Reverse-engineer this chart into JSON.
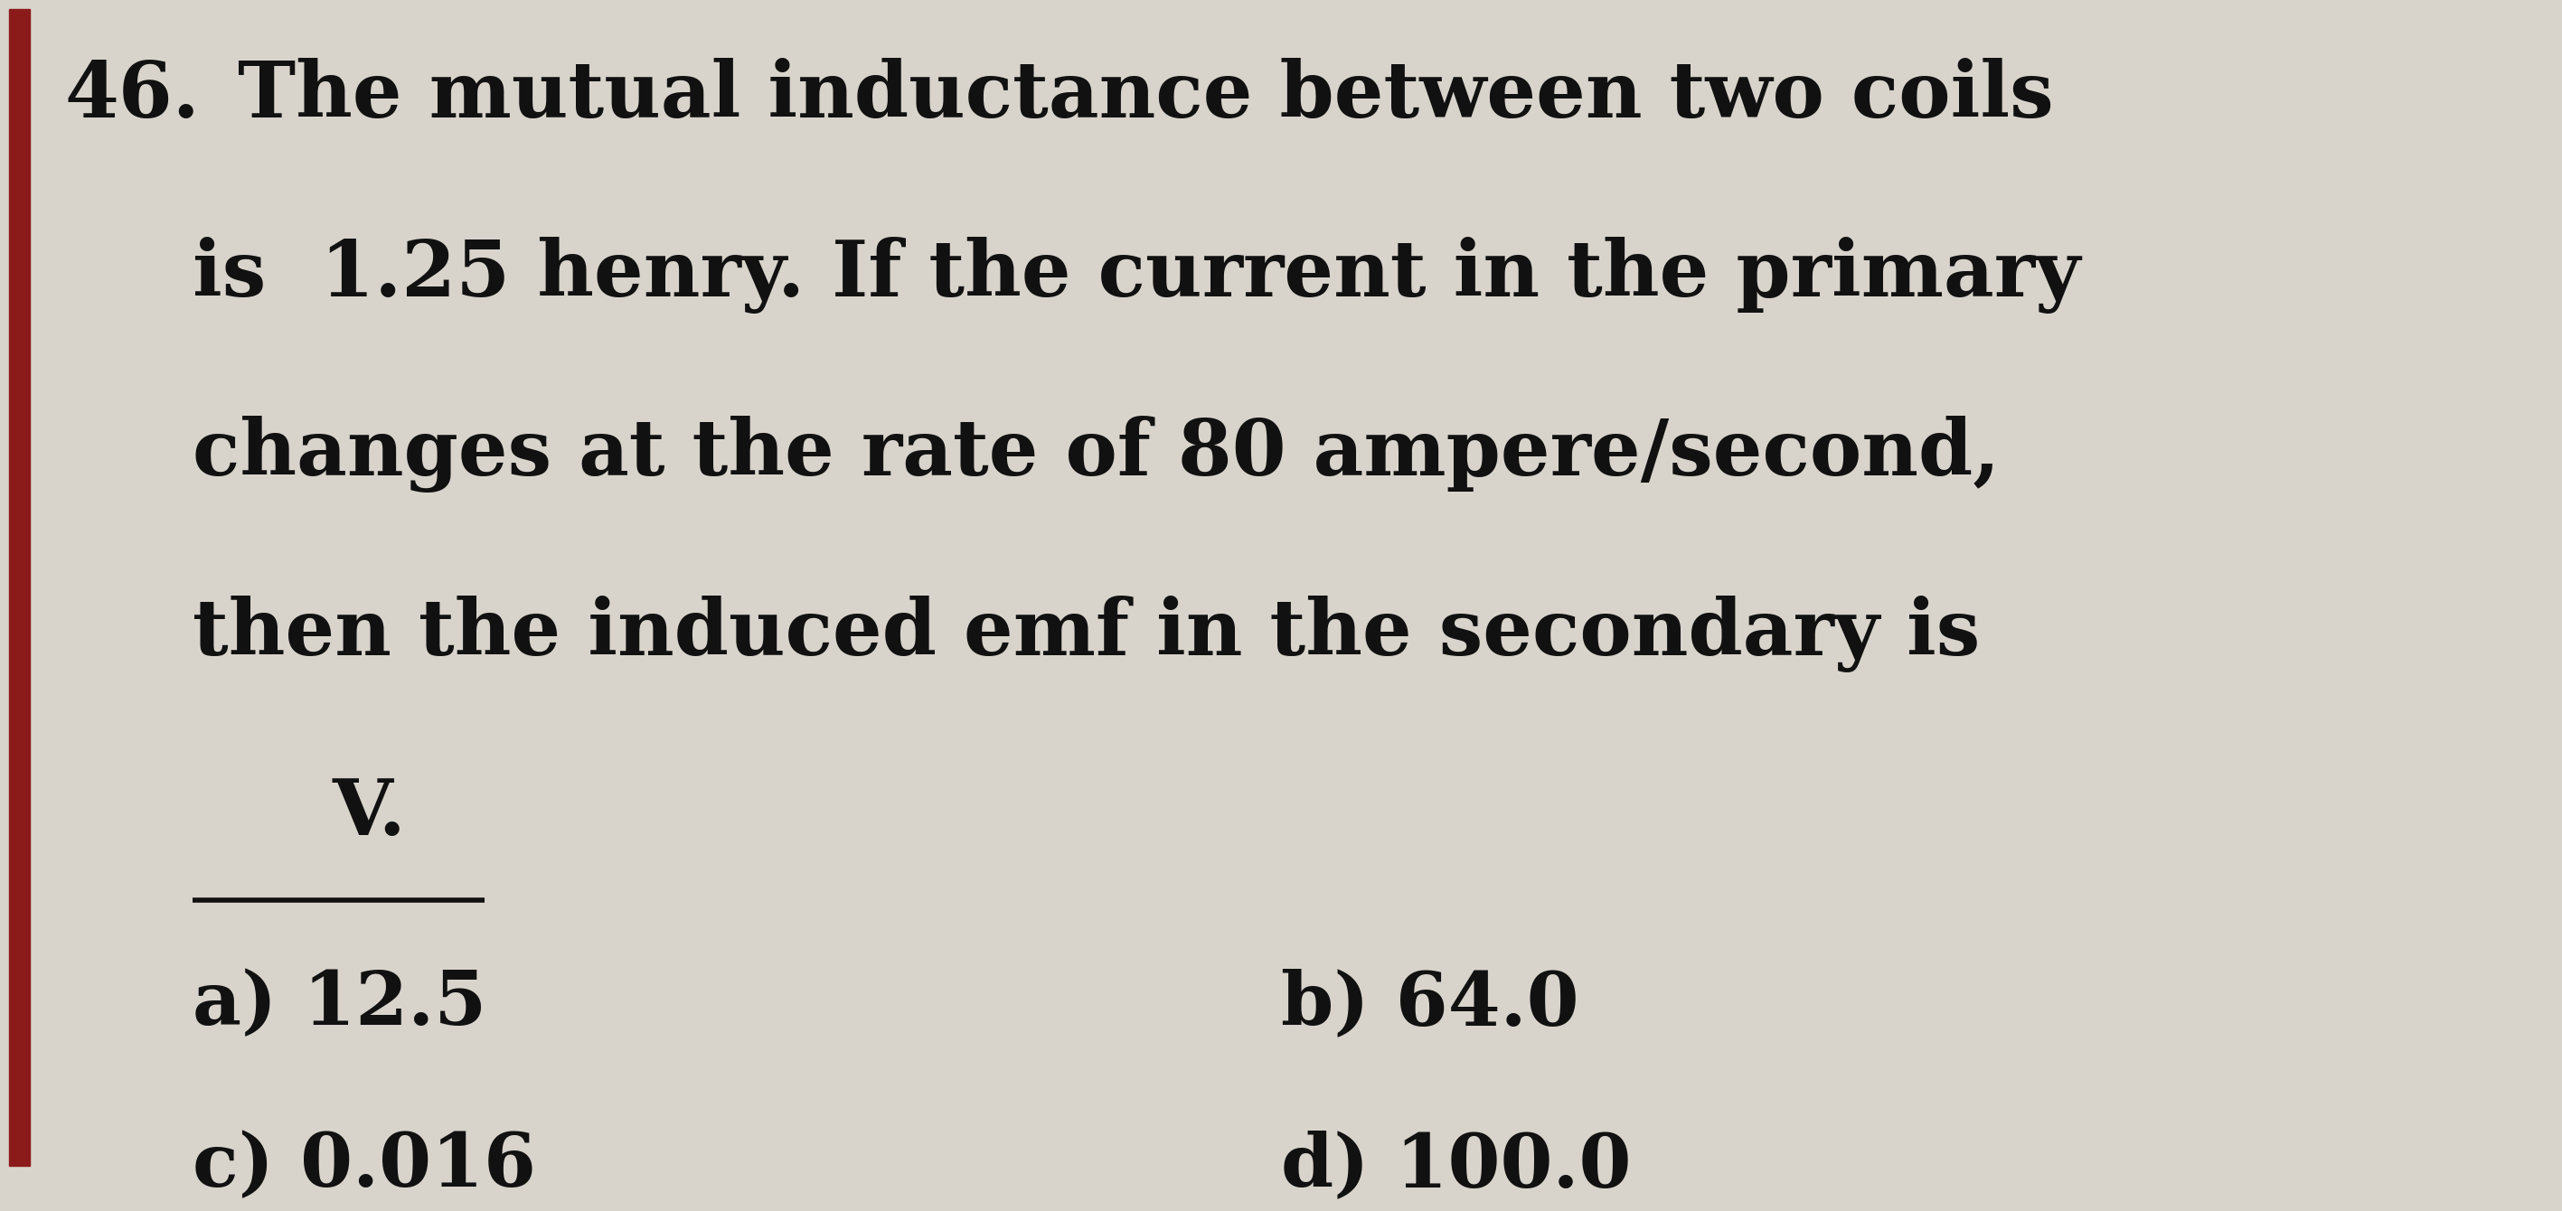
{
  "question_number": "46.",
  "line1": "The mutual inductance between two coils",
  "line2": "is  1.25 henry. If the current in the primary",
  "line3": "changes at the rate of 80 ampere/second,",
  "line4": "then the induced emf in the secondary is",
  "line5_text": "    V.",
  "options": [
    {
      "label": "a)",
      "value": "12.5",
      "col": 0
    },
    {
      "label": "b)",
      "value": "64.0",
      "col": 1
    },
    {
      "label": "c)",
      "value": "0.016",
      "col": 0
    },
    {
      "label": "d)",
      "value": "100.0",
      "col": 1
    }
  ],
  "background_color": "#d8d4cc",
  "text_color": "#111111",
  "left_bar_color": "#8b1a1a",
  "fig_width": 28.14,
  "fig_height": 12.8
}
